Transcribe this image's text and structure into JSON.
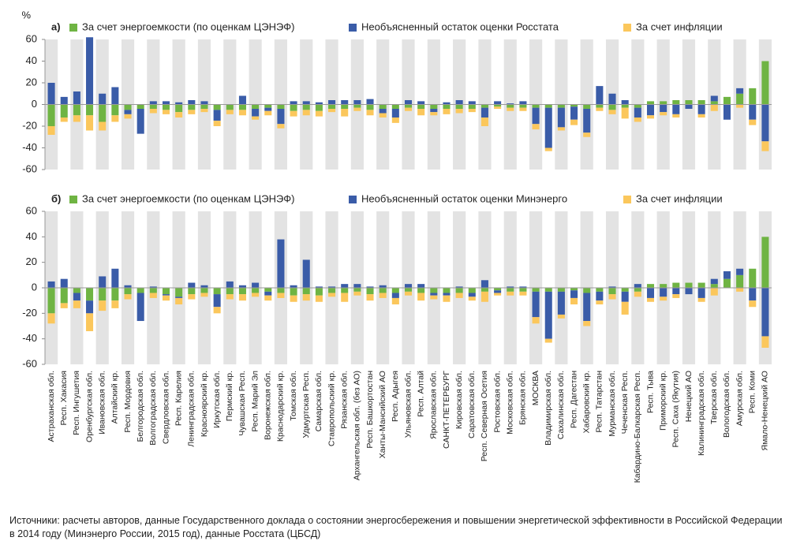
{
  "chart_data": [
    {
      "type": "bar",
      "panel": "а)",
      "unit": "%",
      "ylim": [
        -60,
        60
      ],
      "yticks": [
        -60,
        -40,
        -20,
        0,
        20,
        40,
        60
      ],
      "series": [
        {
          "name": "За счет энергоемкости (по оценкам ЦЭНЭФ)",
          "color": "#6fb443",
          "values": [
            -20,
            -12,
            -10,
            -10,
            -16,
            -10,
            -5,
            -4,
            -4,
            -5,
            -7,
            -5,
            -4,
            -5,
            -5,
            -5,
            -4,
            -3,
            -4,
            -6,
            -5,
            -6,
            -4,
            -4,
            -3,
            -5,
            -4,
            -4,
            -3,
            -4,
            -4,
            -4,
            -4,
            -4,
            -3,
            -2,
            -3,
            -3,
            -3,
            -3,
            -3,
            -2,
            -4,
            -3,
            -5,
            -3,
            -3,
            3,
            3,
            4,
            4,
            4,
            3,
            7,
            10,
            15,
            40
          ]
        },
        {
          "name": "Необъясненный остаток оценки Росстата",
          "color": "#3a5ca8",
          "values": [
            20,
            7,
            12,
            62,
            10,
            16,
            -4,
            -23,
            3,
            3,
            2,
            4,
            3,
            -10,
            0,
            8,
            -7,
            -3,
            -14,
            3,
            3,
            2,
            4,
            4,
            4,
            5,
            -4,
            -8,
            4,
            3,
            -3,
            2,
            4,
            3,
            -9,
            3,
            1,
            3,
            -15,
            -37,
            -18,
            -12,
            -22,
            17,
            10,
            4,
            -9,
            -10,
            -7,
            -9,
            -4,
            -9,
            5,
            -14,
            5,
            -14,
            -34
          ]
        },
        {
          "name": "За счет инфляции",
          "color": "#fbc75c",
          "values": [
            -8,
            -4,
            -6,
            -14,
            -8,
            -6,
            -4,
            0,
            -4,
            -4,
            -5,
            -4,
            -3,
            -5,
            -4,
            -5,
            -3,
            -4,
            -4,
            -5,
            -5,
            -5,
            -3,
            -7,
            -3,
            -5,
            -4,
            -5,
            -3,
            -6,
            -3,
            -5,
            -4,
            -3,
            -8,
            -2,
            -3,
            -3,
            -5,
            -3,
            -3,
            -5,
            -4,
            -3,
            -4,
            -10,
            -4,
            -3,
            -3,
            -3,
            0,
            -3,
            -6,
            0,
            -3,
            -5,
            -9
          ]
        }
      ]
    },
    {
      "type": "bar",
      "panel": "б)",
      "ylim": [
        -60,
        60
      ],
      "yticks": [
        -60,
        -40,
        -20,
        0,
        20,
        40,
        60
      ],
      "series": [
        {
          "name": "За счет энергоемкости (по оценкам ЦЭНЭФ)",
          "color": "#6fb443",
          "values": [
            -20,
            -12,
            -4,
            -10,
            -10,
            -10,
            -5,
            -4,
            -4,
            -5,
            -7,
            -5,
            -4,
            -5,
            -5,
            -5,
            -4,
            -3,
            -4,
            -6,
            -5,
            -6,
            -4,
            -4,
            -3,
            -5,
            -4,
            -4,
            -3,
            -4,
            -4,
            -4,
            -4,
            -4,
            -3,
            -2,
            -3,
            -3,
            -3,
            -3,
            -3,
            -2,
            -4,
            -3,
            -5,
            -3,
            -3,
            3,
            3,
            4,
            4,
            4,
            3,
            7,
            10,
            15,
            40
          ]
        },
        {
          "name": "Необъясненный остаток оценки Минэнерго",
          "color": "#3a5ca8",
          "values": [
            5,
            7,
            -6,
            -10,
            9,
            15,
            2,
            -22,
            1,
            -1,
            -1,
            4,
            2,
            -10,
            5,
            2,
            4,
            -3,
            38,
            2,
            22,
            1,
            1,
            3,
            3,
            1,
            2,
            -4,
            3,
            3,
            -2,
            -2,
            1,
            -3,
            6,
            -2,
            1,
            1,
            -20,
            -37,
            -18,
            -6,
            -22,
            -7,
            1,
            -8,
            3,
            -8,
            -7,
            -5,
            -5,
            -8,
            4,
            6,
            5,
            -10,
            -38
          ]
        },
        {
          "name": "За счет инфляции",
          "color": "#fbc75c",
          "values": [
            -8,
            -4,
            -6,
            -14,
            -8,
            -6,
            -4,
            0,
            -4,
            -4,
            -5,
            -4,
            -3,
            -5,
            -4,
            -5,
            -3,
            -4,
            -4,
            -5,
            -5,
            -5,
            -3,
            -7,
            -3,
            -5,
            -4,
            -5,
            -3,
            -6,
            -3,
            -5,
            -4,
            -3,
            -8,
            -2,
            -3,
            -3,
            -5,
            -3,
            -3,
            -5,
            -4,
            -3,
            -4,
            -10,
            -4,
            -3,
            -3,
            -3,
            0,
            -3,
            -6,
            0,
            -3,
            -5,
            -9
          ]
        }
      ],
      "categories": [
        "Астраханская обл.",
        "Респ. Хакасия",
        "Респ. Ингушетия",
        "Оренбургская обл.",
        "Ивановская обл.",
        "Алтайский кр.",
        "Респ. Мордовия",
        "Белгородская обл.",
        "Волгоградская обл.",
        "Свердловская обл.",
        "Респ. Карелия",
        "Ленинградская обл.",
        "Красноярский кр.",
        "Иркутская обл.",
        "Пермский кр.",
        "Чувашская Респ.",
        "Респ. Марий Эл",
        "Воронежская обл.",
        "Краснодарский кр.",
        "Томская обл.",
        "Удмуртская Респ.",
        "Самарская обл.",
        "Ставропольский кр.",
        "Рязанская обл.",
        "Архангельская обл. (без АО)",
        "Респ. Башкортостан",
        "Ханты-Мансийский АО",
        "Респ. Адыгея",
        "Ульяновская обл.",
        "Респ. Алтай",
        "Ярославская обл.",
        "САНКТ-ПЕТЕРБУРГ",
        "Кировская обл.",
        "Саратовская обл.",
        "Респ. Северная Осетия",
        "Ростовская обл.",
        "Московская обл.",
        "Брянская обл.",
        "МОСКВА",
        "Владимирская обл.",
        "Сахалинская обл.",
        "Респ. Дагестан",
        "Хабаровский кр.",
        "Респ. Татарстан",
        "Мурманская обл.",
        "Чеченская Респ.",
        "Кабардино-Балкарская Респ.",
        "Респ. Тыва",
        "Приморский кр.",
        "Респ. Саха (Якутия)",
        "Ненецкий АО",
        "Калининградская обл.",
        "Тверская обл.",
        "Вологодская обл.",
        "Амурская обл.",
        "Респ. Коми",
        "Ямало-Ненецкий АО"
      ]
    }
  ],
  "source": "Источники: расчеты авторов, данные Государственного доклада о состоянии энергосбережения и повышении энергетической эффективности в Российской Федерации в 2014 году (Минэнерго России, 2015 год), данные Росстата (ЦБСД)"
}
